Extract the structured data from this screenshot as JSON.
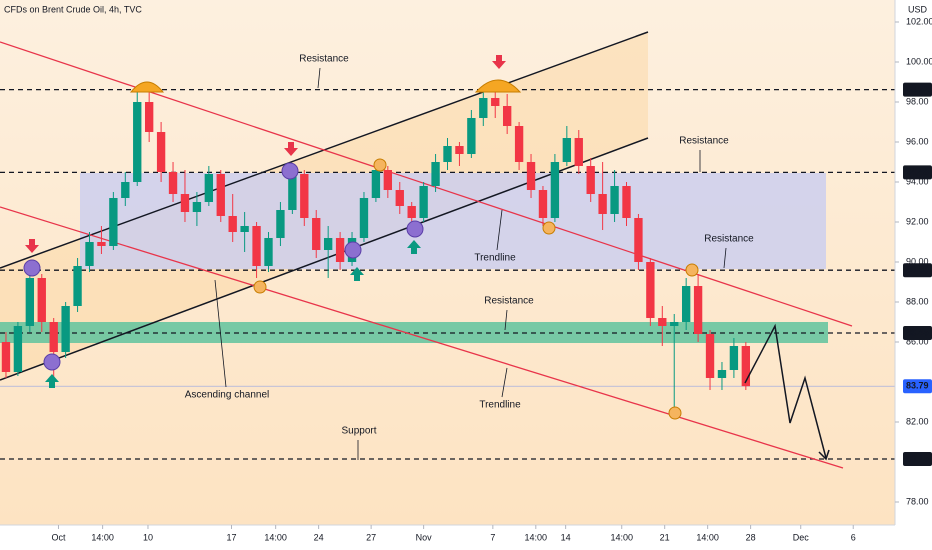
{
  "chart_data": {
    "type": "candlestick",
    "title": "CFDs on Brent Crude Oil, 4h, TVC",
    "y_axis_label": "USD",
    "up_color": "#089981",
    "down_color": "#f23645",
    "xlim": [
      0,
      75
    ],
    "ylim": [
      76.85,
      103.1
    ],
    "xticks": [
      {
        "value": 4.9,
        "label": "Oct"
      },
      {
        "value": 8.6,
        "label": "14:00"
      },
      {
        "value": 12.4,
        "label": "10"
      },
      {
        "value": 19.4,
        "label": "17"
      },
      {
        "value": 23.1,
        "label": "14:00"
      },
      {
        "value": 26.7,
        "label": "24"
      },
      {
        "value": 31.1,
        "label": "27"
      },
      {
        "value": 35.5,
        "label": "Nov"
      },
      {
        "value": 41.3,
        "label": "7"
      },
      {
        "value": 44.9,
        "label": "14:00"
      },
      {
        "value": 47.4,
        "label": "14"
      },
      {
        "value": 52.1,
        "label": "14:00"
      },
      {
        "value": 55.7,
        "label": "21"
      },
      {
        "value": 59.3,
        "label": "14:00"
      },
      {
        "value": 62.9,
        "label": "28"
      },
      {
        "value": 67.1,
        "label": "Dec"
      },
      {
        "value": 71.5,
        "label": "6"
      }
    ],
    "yticks": [
      {
        "value": 102,
        "label": "102.00"
      },
      {
        "value": 100,
        "label": "100.00"
      },
      {
        "value": 98,
        "label": "98.00"
      },
      {
        "value": 96,
        "label": "96.00"
      },
      {
        "value": 94,
        "label": "94.00"
      },
      {
        "value": 92,
        "label": "92.00"
      },
      {
        "value": 90,
        "label": "90.00"
      },
      {
        "value": 88,
        "label": "88.00"
      },
      {
        "value": 86,
        "label": "86.00"
      },
      {
        "value": 82,
        "label": "82.00"
      },
      {
        "value": 78,
        "label": "78.00"
      }
    ],
    "levels": [
      98.62,
      94.48,
      89.59,
      86.45,
      80.15
    ],
    "last_price": 83.79,
    "open": [
      86,
      84.5,
      86.8,
      89.2,
      87,
      85.5,
      87.8,
      89.8,
      91,
      90.8,
      93.2,
      94,
      98,
      96.5,
      94.5,
      93.4,
      92.5,
      93,
      94.4,
      92.3,
      91.5,
      91.8,
      89.8,
      91.2,
      92.6,
      94.4,
      92.2,
      90.6,
      91.2,
      90,
      91.2,
      93.2,
      94.6,
      93.6,
      92.8,
      92.2,
      93.8,
      95,
      95.8,
      95.4,
      97.2,
      98.2,
      97.8,
      96.8,
      95,
      93.6,
      92.2,
      95,
      96.2,
      94.8,
      93.4,
      92.4,
      93.8,
      92.2,
      90,
      87.2,
      86.8,
      87,
      88.8,
      86.4,
      84.2,
      84.6,
      85.8
    ],
    "high": [
      86.5,
      87,
      89.6,
      89.4,
      87.2,
      88,
      90.2,
      91.5,
      91.8,
      93.5,
      94.5,
      98.5,
      98.7,
      97,
      95,
      94.6,
      93.5,
      94.8,
      94.6,
      93.4,
      92.5,
      92,
      91.5,
      93,
      94.8,
      94.6,
      92.6,
      91.8,
      91.5,
      91.5,
      93.5,
      95,
      94.8,
      94,
      93,
      94,
      95.4,
      96.2,
      96,
      97.6,
      98.8,
      98.6,
      98.4,
      97,
      95.4,
      93.8,
      95.4,
      96.8,
      96.6,
      95.2,
      95,
      94.6,
      94,
      92.4,
      90.2,
      87.8,
      87.4,
      89.2,
      89.4,
      86.6,
      85,
      86.2,
      86
    ],
    "low": [
      84.2,
      84.3,
      86.5,
      86.5,
      84,
      85.2,
      87.5,
      89.5,
      90.4,
      90.6,
      92.8,
      93.8,
      96,
      94,
      93,
      92,
      91.8,
      92.8,
      92,
      91,
      90.5,
      89.2,
      89.5,
      90.8,
      92.4,
      91.8,
      90.2,
      89.2,
      89.6,
      89.8,
      91,
      93,
      93.2,
      92.4,
      91.4,
      92,
      93.5,
      94.6,
      94.8,
      95.2,
      96.8,
      97.2,
      96.4,
      94.6,
      93.2,
      91.8,
      92,
      94.8,
      94.4,
      93,
      91.6,
      92,
      91.8,
      89.6,
      86.8,
      85.8,
      82.4,
      86.6,
      86,
      83.6,
      83.6,
      84.2,
      83.6
    ],
    "close": [
      84.5,
      86.8,
      89.2,
      87,
      85.5,
      87.8,
      89.8,
      91,
      90.8,
      93.2,
      94,
      98,
      96.5,
      94.5,
      93.4,
      92.5,
      93,
      94.4,
      92.3,
      91.5,
      91.8,
      89.8,
      91.2,
      92.6,
      94.4,
      92.2,
      90.6,
      91.2,
      90,
      91.2,
      93.2,
      94.6,
      93.6,
      92.8,
      92.2,
      93.8,
      95,
      95.8,
      95.4,
      97.2,
      98.2,
      97.8,
      96.8,
      95,
      93.6,
      92.2,
      95,
      96.2,
      94.8,
      93.4,
      92.4,
      93.8,
      92.2,
      90,
      87.2,
      86.8,
      87,
      88.8,
      86.4,
      84.2,
      84.6,
      85.8,
      83.79
    ],
    "annotations": [
      "Resistance",
      "Resistance",
      "Resistance",
      "Resistance",
      "Trendline",
      "Trendline",
      "Ascending channel",
      "Support"
    ]
  }
}
